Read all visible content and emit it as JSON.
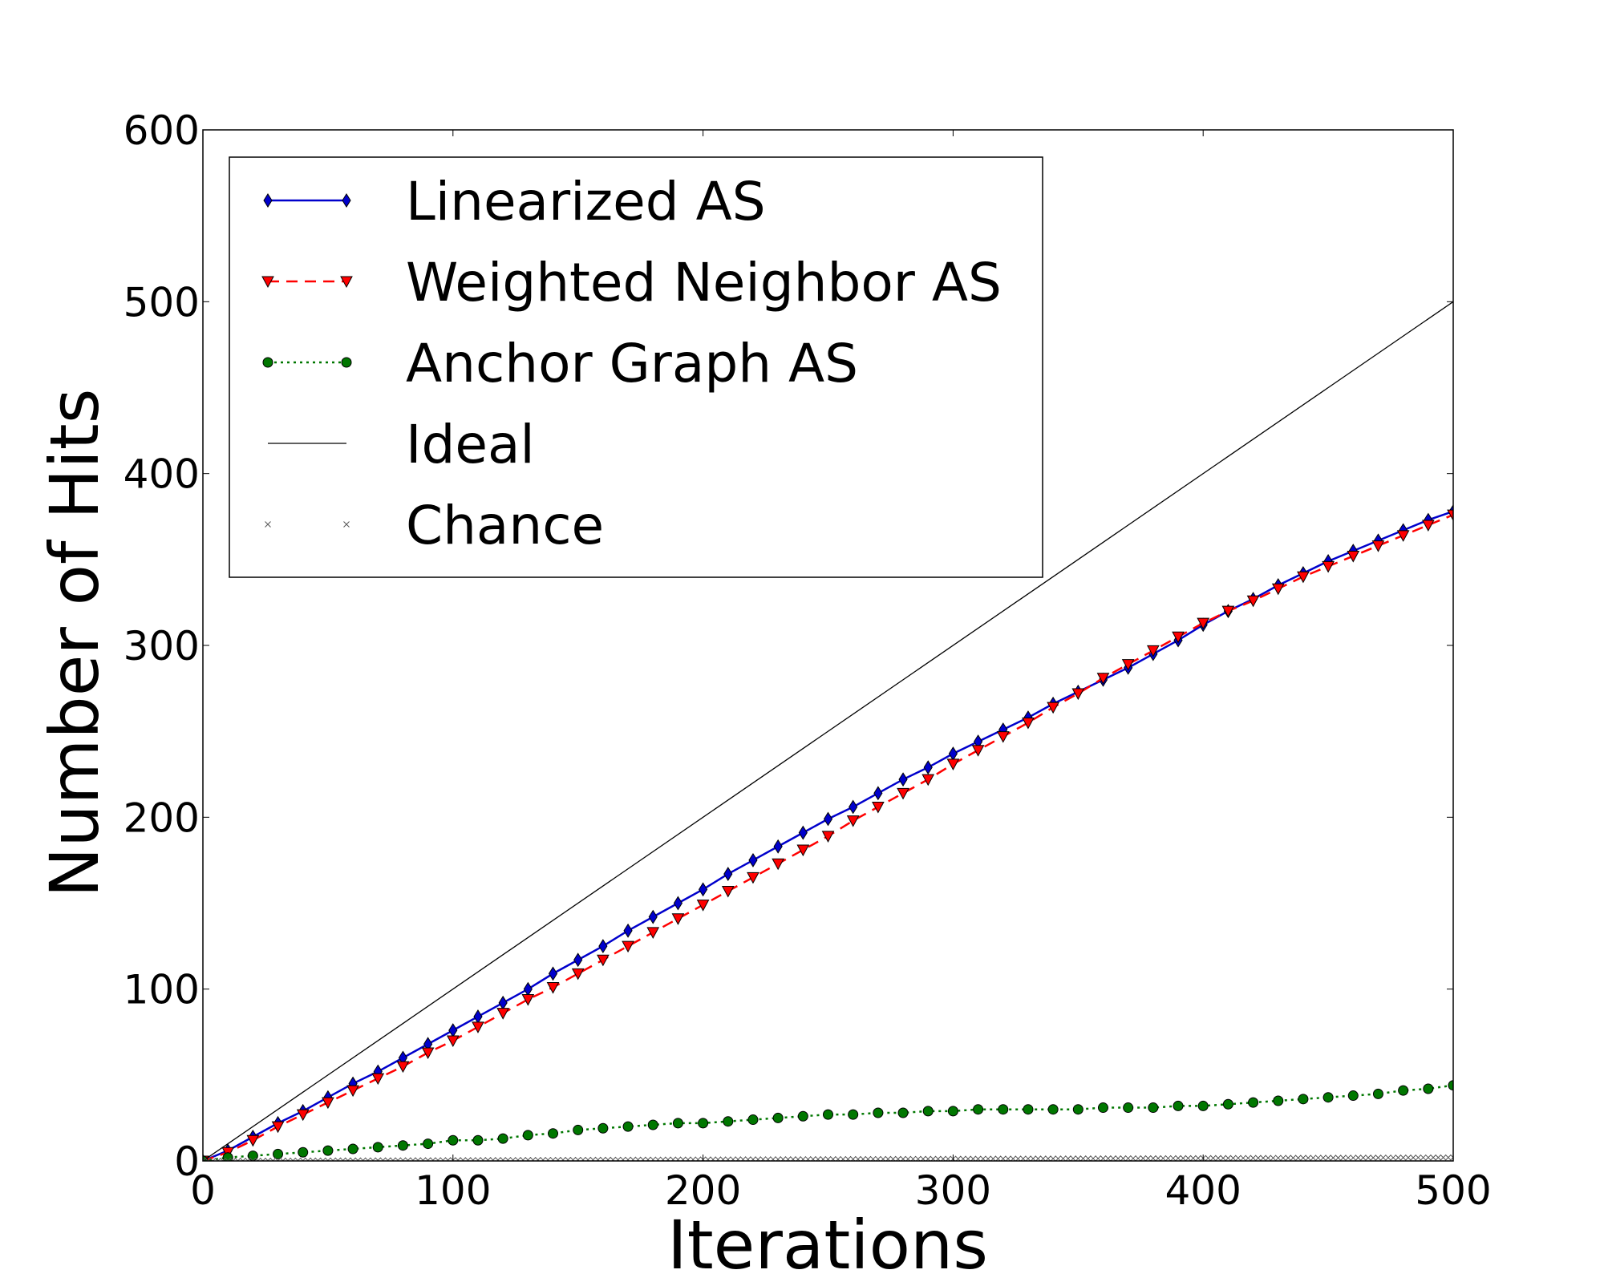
{
  "chart_data": {
    "type": "line",
    "title": "",
    "xlabel": "Iterations",
    "ylabel": "Number of Hits",
    "xlim": [
      0,
      500
    ],
    "ylim": [
      0,
      600
    ],
    "xticks": [
      "0",
      "100",
      "200",
      "300",
      "400",
      "500"
    ],
    "yticks": [
      "0",
      "100",
      "200",
      "300",
      "400",
      "500",
      "600"
    ],
    "grid": false,
    "legend_position": "top-left",
    "x": [
      0,
      10,
      20,
      30,
      40,
      50,
      60,
      70,
      80,
      90,
      100,
      110,
      120,
      130,
      140,
      150,
      160,
      170,
      180,
      190,
      200,
      210,
      220,
      230,
      240,
      250,
      260,
      270,
      280,
      290,
      300,
      310,
      320,
      330,
      340,
      350,
      360,
      370,
      380,
      390,
      400,
      410,
      420,
      430,
      440,
      450,
      460,
      470,
      480,
      490,
      500
    ],
    "series": [
      {
        "name": "Linearized AS",
        "color": "#0000cc",
        "line_style": "solid",
        "marker": "diamond",
        "values": [
          0,
          6,
          14,
          22,
          29,
          37,
          45,
          52,
          60,
          68,
          76,
          84,
          92,
          100,
          109,
          117,
          125,
          134,
          142,
          150,
          158,
          167,
          175,
          183,
          191,
          199,
          206,
          214,
          222,
          229,
          237,
          244,
          251,
          258,
          266,
          273,
          280,
          287,
          295,
          303,
          312,
          320,
          327,
          335,
          342,
          349,
          355,
          361,
          367,
          373,
          378
        ]
      },
      {
        "name": "Weighted Neighbor AS",
        "color": "#ff0000",
        "line_style": "dashed",
        "marker": "triangle-down",
        "values": [
          0,
          5,
          12,
          20,
          27,
          34,
          41,
          48,
          55,
          63,
          70,
          78,
          86,
          94,
          101,
          109,
          117,
          125,
          133,
          141,
          149,
          157,
          165,
          173,
          181,
          189,
          198,
          206,
          214,
          222,
          231,
          239,
          247,
          255,
          264,
          272,
          281,
          289,
          297,
          305,
          313,
          320,
          326,
          333,
          340,
          346,
          352,
          358,
          364,
          370,
          376
        ]
      },
      {
        "name": "Anchor Graph AS",
        "color": "#007700",
        "line_style": "dotted",
        "marker": "circle",
        "values": [
          0,
          2,
          3,
          4,
          5,
          6,
          7,
          8,
          9,
          10,
          12,
          12,
          13,
          15,
          16,
          18,
          19,
          20,
          21,
          22,
          22,
          23,
          24,
          25,
          26,
          27,
          27,
          28,
          28,
          29,
          29,
          30,
          30,
          30,
          30,
          30,
          31,
          31,
          31,
          32,
          32,
          33,
          34,
          35,
          36,
          37,
          38,
          39,
          41,
          42,
          44
        ]
      },
      {
        "name": "Ideal",
        "color": "#000000",
        "line_style": "solid",
        "marker": "none",
        "x": [
          0,
          500
        ],
        "values": [
          0,
          500
        ]
      },
      {
        "name": "Chance",
        "color": "#555555",
        "line_style": "none",
        "marker": "x",
        "x_range": [
          0,
          500
        ],
        "x_step": 2,
        "y_end": 2
      }
    ]
  }
}
